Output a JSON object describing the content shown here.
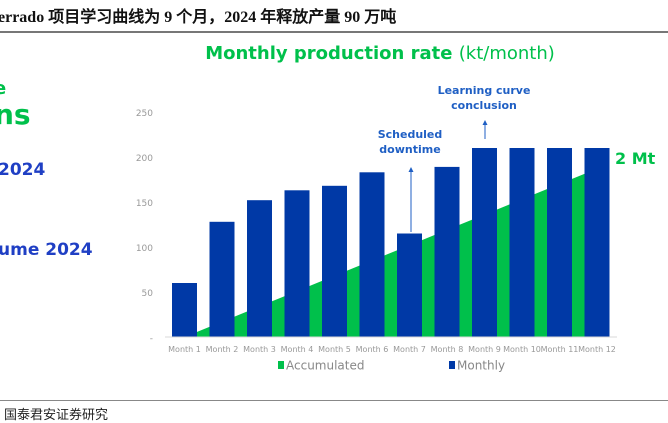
{
  "header": {
    "title": "errado  项目学习曲线为 9 个月，2024 年释放产量 90 万吨"
  },
  "left_fragments": {
    "line1": "e",
    "line2": "ns",
    "line3": "2024",
    "line4": "ume 2024"
  },
  "source": "国泰君安证券研究",
  "colors": {
    "green": "#00c04b",
    "blue": "#0039a6",
    "annot": "#1f5fc4"
  },
  "chart_data": {
    "type": "bar",
    "title_main": "Monthly production rate",
    "title_unit": "(kt/month)",
    "categories": [
      "Month 1",
      "Month 2",
      "Month 3",
      "Month 4",
      "Month 5",
      "Month 6",
      "Month 7",
      "Month 8",
      "Month 9",
      "Month 10",
      "Month 11",
      "Month 12"
    ],
    "yticks": [
      "-",
      "50",
      "100",
      "150",
      "200",
      "250"
    ],
    "ylim": [
      0,
      250
    ],
    "series": [
      {
        "name": "Accumulated",
        "type": "area",
        "values": [
          0,
          17,
          34,
          51,
          68,
          85,
          102,
          119,
          136,
          153,
          170,
          187
        ],
        "end_label": "2 Mt"
      },
      {
        "name": "Monthly",
        "type": "bar",
        "values": [
          60,
          128,
          152,
          163,
          168,
          183,
          115,
          189,
          210,
          210,
          210,
          210
        ]
      }
    ],
    "annotations": [
      {
        "lines": [
          "Scheduled",
          "downtime"
        ],
        "month": "Month 7"
      },
      {
        "lines": [
          "Learning curve",
          "conclusion"
        ],
        "month": "Month 9"
      }
    ],
    "legend": "bottom"
  }
}
